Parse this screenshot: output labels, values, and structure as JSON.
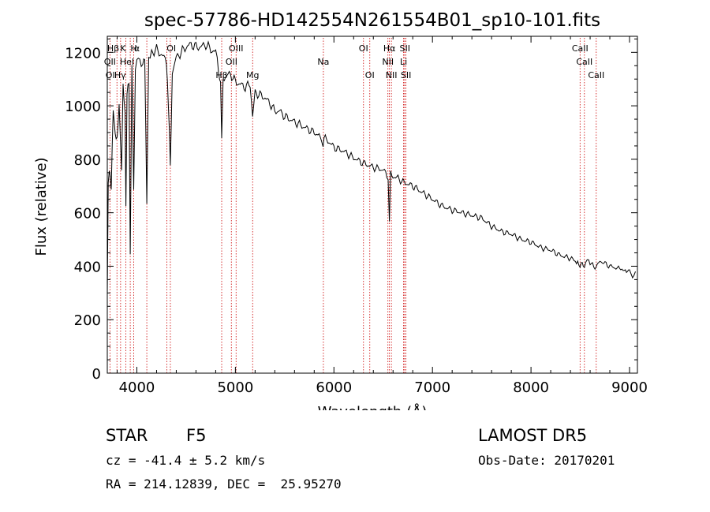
{
  "chart_data": {
    "type": "line",
    "title": "spec-57786-HD142554N261554B01_sp10-101.fits",
    "xlabel": "Wavelength (Å)",
    "ylabel": "Flux (relative)",
    "xlim": [
      3700,
      9080
    ],
    "ylim": [
      0,
      1260
    ],
    "xticks": [
      "4000",
      "5000",
      "6000",
      "7000",
      "8000",
      "9000"
    ],
    "yticks": [
      "0",
      "200",
      "400",
      "600",
      "800",
      "1000",
      "1200"
    ],
    "grid": false,
    "line_color": "#000000",
    "marker_color": "#cc0000",
    "series": [
      {
        "x": [
          3700,
          3710,
          3720,
          3740,
          3760,
          3780,
          3800,
          3820,
          3835,
          3845,
          3860,
          3880,
          3889,
          3900,
          3920,
          3933,
          3950,
          3968,
          3985,
          4000,
          4030,
          4060,
          4080,
          4101,
          4120,
          4150,
          4200,
          4250,
          4300,
          4320,
          4340,
          4360,
          4400,
          4450,
          4500,
          4550,
          4600,
          4650,
          4700,
          4750,
          4800,
          4830,
          4850,
          4861,
          4875,
          4900,
          4950,
          5000,
          5050,
          5100,
          5150,
          5175,
          5200,
          5250,
          5300,
          5350,
          5400,
          5450,
          5500,
          5550,
          5600,
          5650,
          5700,
          5750,
          5800,
          5850,
          5890,
          5900,
          5950,
          6000,
          6100,
          6200,
          6300,
          6400,
          6500,
          6550,
          6563,
          6575,
          6600,
          6650,
          6700,
          6800,
          6900,
          7000,
          7100,
          7200,
          7300,
          7400,
          7500,
          7600,
          7700,
          7800,
          7900,
          8000,
          8100,
          8200,
          8300,
          8400,
          8450,
          8498,
          8520,
          8542,
          8570,
          8600,
          8662,
          8700,
          8800,
          8900,
          8980,
          9000,
          9030,
          9060
        ],
        "y": [
          300,
          700,
          760,
          700,
          980,
          900,
          870,
          1000,
          850,
          760,
          1080,
          980,
          620,
          1050,
          1100,
          450,
          1150,
          700,
          1120,
          1170,
          1180,
          1150,
          1180,
          640,
          1190,
          1200,
          1210,
          1190,
          1170,
          1010,
          780,
          1120,
          1180,
          1200,
          1220,
          1230,
          1220,
          1220,
          1230,
          1210,
          1200,
          1130,
          1080,
          880,
          1100,
          1110,
          1120,
          1090,
          1080,
          1070,
          1080,
          960,
          1050,
          1040,
          1030,
          1010,
          980,
          980,
          960,
          950,
          940,
          930,
          920,
          910,
          900,
          890,
          850,
          880,
          865,
          845,
          830,
          805,
          785,
          770,
          760,
          735,
          570,
          745,
          735,
          730,
          715,
          700,
          675,
          650,
          625,
          610,
          600,
          590,
          580,
          550,
          530,
          520,
          500,
          490,
          470,
          460,
          440,
          430,
          420,
          400,
          420,
          390,
          420,
          410,
          395,
          420,
          400,
          390,
          380,
          390,
          360,
          380
        ]
      }
    ],
    "annotations": [
      {
        "label": "Hβ",
        "x": 3760,
        "row": 1
      },
      {
        "label": "K",
        "x": 3860,
        "row": 1
      },
      {
        "label": "H",
        "x": 3968,
        "row": 1
      },
      {
        "label": "α",
        "x": 4000,
        "row": 1
      },
      {
        "label": "OI",
        "x": 4350,
        "row": 1
      },
      {
        "label": "OIII",
        "x": 5007,
        "row": 1
      },
      {
        "label": "OI",
        "x": 6300,
        "row": 1
      },
      {
        "label": "Hα",
        "x": 6563,
        "row": 1
      },
      {
        "label": "SII",
        "x": 6720,
        "row": 1
      },
      {
        "label": "CaII",
        "x": 8498,
        "row": 1
      },
      {
        "label": "OII",
        "x": 3727,
        "row": 2
      },
      {
        "label": "HeI",
        "x": 3900,
        "row": 2
      },
      {
        "label": "OII",
        "x": 4960,
        "row": 2
      },
      {
        "label": "Na",
        "x": 5893,
        "row": 2
      },
      {
        "label": "NII",
        "x": 6548,
        "row": 2
      },
      {
        "label": "Li",
        "x": 6707,
        "row": 2
      },
      {
        "label": "CaII",
        "x": 8542,
        "row": 2
      },
      {
        "label": "OI",
        "x": 3730,
        "row": 3
      },
      {
        "label": "Hγ",
        "x": 3830,
        "row": 3
      },
      {
        "label": "Hβ",
        "x": 4861,
        "row": 3
      },
      {
        "label": "Mg",
        "x": 5175,
        "row": 3
      },
      {
        "label": "OI",
        "x": 6364,
        "row": 3
      },
      {
        "label": "NII",
        "x": 6583,
        "row": 3
      },
      {
        "label": "SII",
        "x": 6731,
        "row": 3
      },
      {
        "label": "CaII",
        "x": 8662,
        "row": 3
      }
    ],
    "marker_lines_x": [
      3727,
      3798,
      3835,
      3889,
      3933,
      3968,
      4101,
      4305,
      4340,
      4861,
      4959,
      5007,
      5175,
      5893,
      6300,
      6364,
      6548,
      6563,
      6583,
      6707,
      6717,
      6731,
      8498,
      8542,
      8662
    ]
  },
  "info": {
    "object_class": "STAR",
    "subclass": "F5",
    "survey": "LAMOST DR5",
    "cz": "cz = -41.4 ± 5.2 km/s",
    "obs_date": "Obs-Date: 20170201",
    "coords": "RA = 214.12839, DEC =  25.95270"
  }
}
